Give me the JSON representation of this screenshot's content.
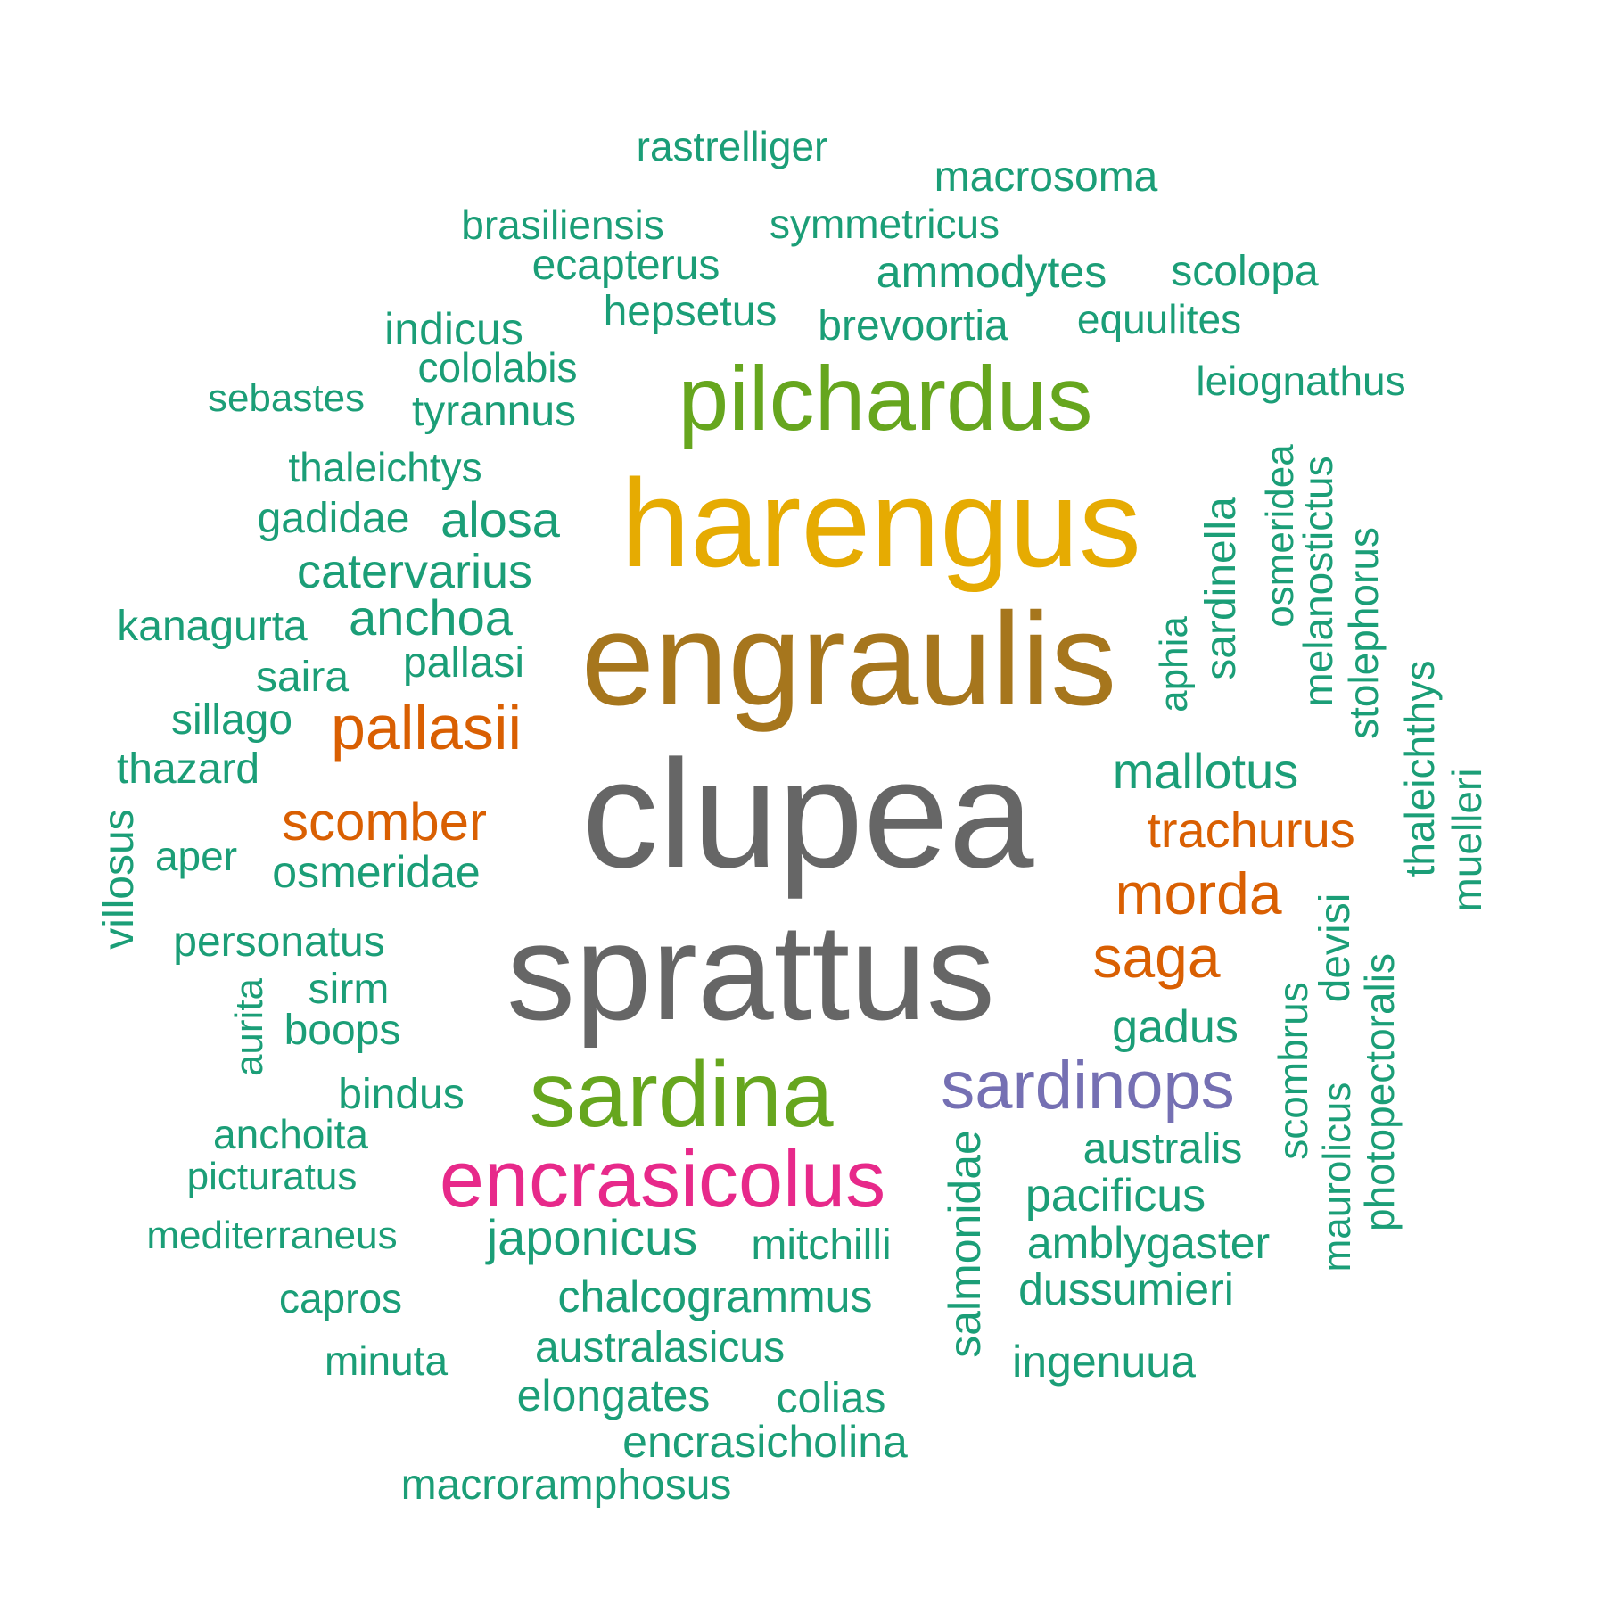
{
  "words": [
    {
      "text": "clupea",
      "color": "#666666"
    },
    {
      "text": "sprattus",
      "color": "#666666"
    },
    {
      "text": "engraulis",
      "color": "#a6761d"
    },
    {
      "text": "harengus",
      "color": "#e6ab02"
    },
    {
      "text": "pilchardus",
      "color": "#66a61e"
    },
    {
      "text": "sardina",
      "color": "#66a61e"
    },
    {
      "text": "encrasicolus",
      "color": "#e7298a"
    },
    {
      "text": "sardinops",
      "color": "#7570b3"
    },
    {
      "text": "pallasii",
      "color": "#d95f02"
    },
    {
      "text": "scomber",
      "color": "#d95f02"
    },
    {
      "text": "trachurus",
      "color": "#d95f02"
    },
    {
      "text": "morda",
      "color": "#d95f02"
    },
    {
      "text": "saga",
      "color": "#d95f02"
    },
    {
      "text": "mallotus",
      "color": "#1b9e77"
    },
    {
      "text": "rastrelliger",
      "color": "#1b9e77"
    },
    {
      "text": "macrosoma",
      "color": "#1b9e77"
    },
    {
      "text": "brasiliensis",
      "color": "#1b9e77"
    },
    {
      "text": "symmetricus",
      "color": "#1b9e77"
    },
    {
      "text": "ecapterus",
      "color": "#1b9e77"
    },
    {
      "text": "ammodytes",
      "color": "#1b9e77"
    },
    {
      "text": "scolopa",
      "color": "#1b9e77"
    },
    {
      "text": "hepsetus",
      "color": "#1b9e77"
    },
    {
      "text": "indicus",
      "color": "#1b9e77"
    },
    {
      "text": "brevoortia",
      "color": "#1b9e77"
    },
    {
      "text": "equulites",
      "color": "#1b9e77"
    },
    {
      "text": "cololabis",
      "color": "#1b9e77"
    },
    {
      "text": "sebastes",
      "color": "#1b9e77"
    },
    {
      "text": "tyrannus",
      "color": "#1b9e77"
    },
    {
      "text": "leiognathus",
      "color": "#1b9e77"
    },
    {
      "text": "thaleichtys",
      "color": "#1b9e77"
    },
    {
      "text": "gadidae",
      "color": "#1b9e77"
    },
    {
      "text": "alosa",
      "color": "#1b9e77"
    },
    {
      "text": "catervarius",
      "color": "#1b9e77"
    },
    {
      "text": "kanagurta",
      "color": "#1b9e77"
    },
    {
      "text": "anchoa",
      "color": "#1b9e77"
    },
    {
      "text": "saira",
      "color": "#1b9e77"
    },
    {
      "text": "pallasi",
      "color": "#1b9e77"
    },
    {
      "text": "sillago",
      "color": "#1b9e77"
    },
    {
      "text": "thazard",
      "color": "#1b9e77"
    },
    {
      "text": "aper",
      "color": "#1b9e77"
    },
    {
      "text": "osmeridae",
      "color": "#1b9e77"
    },
    {
      "text": "personatus",
      "color": "#1b9e77"
    },
    {
      "text": "sirm",
      "color": "#1b9e77"
    },
    {
      "text": "boops",
      "color": "#1b9e77"
    },
    {
      "text": "bindus",
      "color": "#1b9e77"
    },
    {
      "text": "anchoita",
      "color": "#1b9e77"
    },
    {
      "text": "picturatus",
      "color": "#1b9e77"
    },
    {
      "text": "mediterraneus",
      "color": "#1b9e77"
    },
    {
      "text": "capros",
      "color": "#1b9e77"
    },
    {
      "text": "minuta",
      "color": "#1b9e77"
    },
    {
      "text": "japonicus",
      "color": "#1b9e77"
    },
    {
      "text": "mitchilli",
      "color": "#1b9e77"
    },
    {
      "text": "chalcogrammus",
      "color": "#1b9e77"
    },
    {
      "text": "australasicus",
      "color": "#1b9e77"
    },
    {
      "text": "elongates",
      "color": "#1b9e77"
    },
    {
      "text": "colias",
      "color": "#1b9e77"
    },
    {
      "text": "encrasicholina",
      "color": "#1b9e77"
    },
    {
      "text": "macroramphosus",
      "color": "#1b9e77"
    },
    {
      "text": "gadus",
      "color": "#1b9e77"
    },
    {
      "text": "australis",
      "color": "#1b9e77"
    },
    {
      "text": "pacificus",
      "color": "#1b9e77"
    },
    {
      "text": "amblygaster",
      "color": "#1b9e77"
    },
    {
      "text": "dussumieri",
      "color": "#1b9e77"
    },
    {
      "text": "ingenuua",
      "color": "#1b9e77"
    },
    {
      "text": "villosus",
      "color": "#1b9e77"
    },
    {
      "text": "aurita",
      "color": "#1b9e77"
    },
    {
      "text": "salmonidae",
      "color": "#1b9e77"
    },
    {
      "text": "aphia",
      "color": "#1b9e77"
    },
    {
      "text": "sardinella",
      "color": "#1b9e77"
    },
    {
      "text": "osmeridea",
      "color": "#1b9e77"
    },
    {
      "text": "melanostictus",
      "color": "#1b9e77"
    },
    {
      "text": "stolephorus",
      "color": "#1b9e77"
    },
    {
      "text": "thaleichthys",
      "color": "#1b9e77"
    },
    {
      "text": "muelleri",
      "color": "#1b9e77"
    },
    {
      "text": "devisi",
      "color": "#1b9e77"
    },
    {
      "text": "scombrus",
      "color": "#1b9e77"
    },
    {
      "text": "maurolicus",
      "color": "#1b9e77"
    },
    {
      "text": "photopectoralis",
      "color": "#1b9e77"
    }
  ]
}
